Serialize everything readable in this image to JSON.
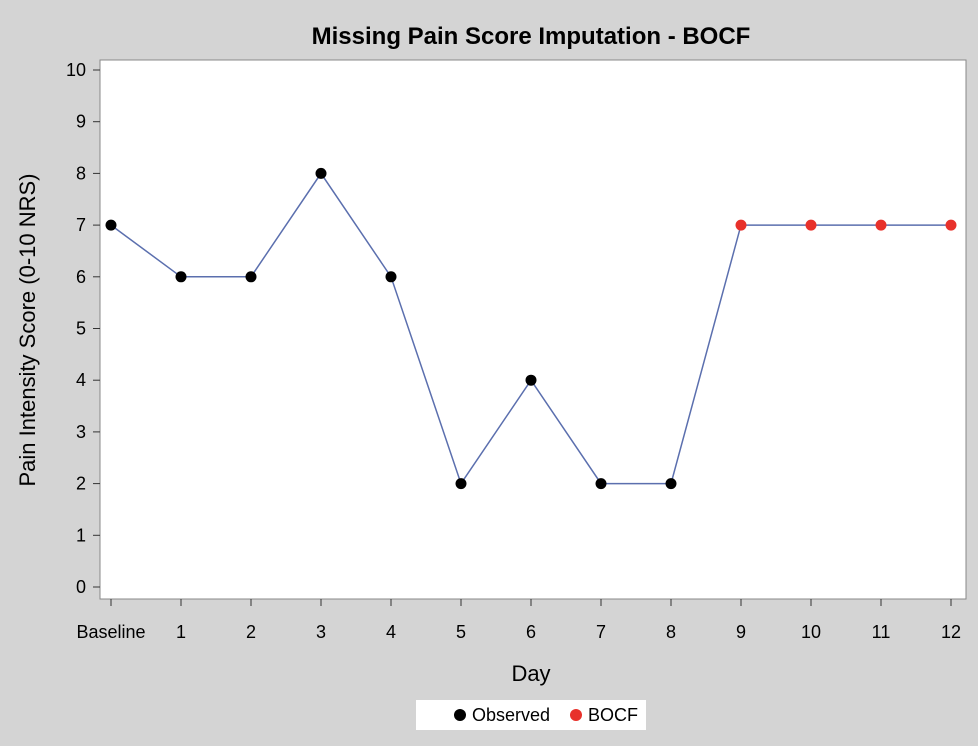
{
  "chart_data": {
    "type": "line",
    "title": "Missing Pain Score Imputation - BOCF",
    "xlabel": "Day",
    "ylabel": "Pain Intensity Score (0-10 NRS)",
    "categories": [
      "Baseline",
      "1",
      "2",
      "3",
      "4",
      "5",
      "6",
      "7",
      "8",
      "9",
      "10",
      "11",
      "12"
    ],
    "values": [
      7,
      6,
      6,
      8,
      6,
      2,
      4,
      2,
      2,
      7,
      7,
      7,
      7
    ],
    "point_groups": [
      "Observed",
      "Observed",
      "Observed",
      "Observed",
      "Observed",
      "Observed",
      "Observed",
      "Observed",
      "Observed",
      "BOCF",
      "BOCF",
      "BOCF",
      "BOCF"
    ],
    "ylim": [
      0,
      10
    ],
    "yticks": [
      0,
      1,
      2,
      3,
      4,
      5,
      6,
      7,
      8,
      9,
      10
    ],
    "grid": false,
    "legend": {
      "placement": "bottom-center",
      "entries": [
        {
          "name": "Observed",
          "color": "#000000"
        },
        {
          "name": "BOCF",
          "color": "#e8312b"
        }
      ]
    },
    "line_color": "#5b6fae",
    "background_color": "#d4d4d4",
    "plot_background_color": "#ffffff"
  }
}
